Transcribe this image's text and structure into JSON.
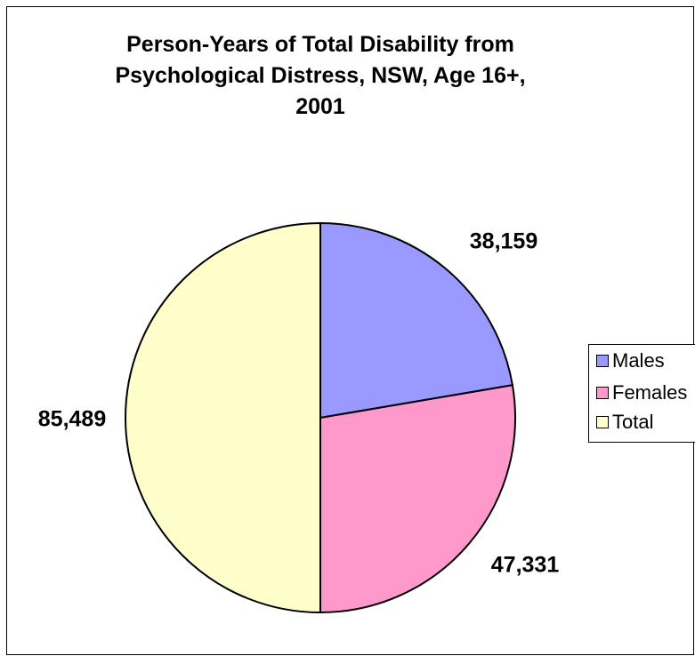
{
  "chart_data": {
    "type": "pie",
    "title_lines": [
      "Person-Years of Total Disability from",
      "Psychological Distress, NSW, Age 16+,",
      "2001"
    ],
    "categories": [
      "Males",
      "Females",
      "Total"
    ],
    "values": [
      38159,
      47331,
      85489
    ],
    "value_labels": [
      "38,159",
      "47,331",
      "85,489"
    ],
    "colors": [
      "#9999FF",
      "#FF99CC",
      "#FFFFCC"
    ],
    "legend": {
      "position": "right",
      "entries": [
        "Males",
        "Females",
        "Total"
      ]
    }
  }
}
